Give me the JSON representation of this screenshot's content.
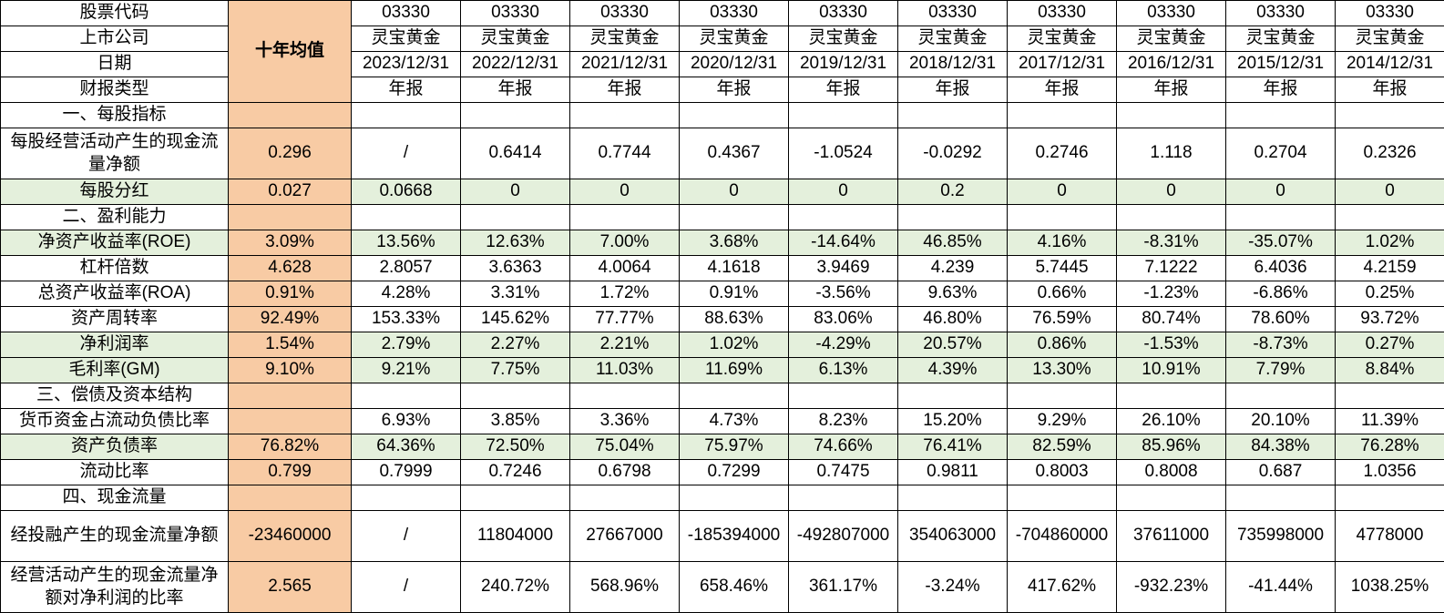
{
  "colors": {
    "avg_column_bg": "#F8CBA4",
    "highlight_row_bg": "#E4F0DC",
    "border": "#000000",
    "text": "#000000",
    "background": "#FFFFFF"
  },
  "table": {
    "avg_header_label": "十年均值",
    "header_rows": [
      {
        "label": "股票代码",
        "values": [
          "03330",
          "03330",
          "03330",
          "03330",
          "03330",
          "03330",
          "03330",
          "03330",
          "03330",
          "03330"
        ]
      },
      {
        "label": "上市公司",
        "values": [
          "灵宝黄金",
          "灵宝黄金",
          "灵宝黄金",
          "灵宝黄金",
          "灵宝黄金",
          "灵宝黄金",
          "灵宝黄金",
          "灵宝黄金",
          "灵宝黄金",
          "灵宝黄金"
        ]
      },
      {
        "label": "日期",
        "values": [
          "2023/12/31",
          "2022/12/31",
          "2021/12/31",
          "2020/12/31",
          "2019/12/31",
          "2018/12/31",
          "2017/12/31",
          "2016/12/31",
          "2015/12/31",
          "2014/12/31"
        ]
      },
      {
        "label": "财报类型",
        "values": [
          "年报",
          "年报",
          "年报",
          "年报",
          "年报",
          "年报",
          "年报",
          "年报",
          "年报",
          "年报"
        ]
      }
    ],
    "rows": [
      {
        "type": "section",
        "label": "一、每股指标"
      },
      {
        "type": "data",
        "tall": true,
        "highlight": false,
        "label": "每股经营活动产生的现金流量净额",
        "avg": "0.296",
        "values": [
          "/",
          "0.6414",
          "0.7744",
          "0.4367",
          "-1.0524",
          "-0.0292",
          "0.2746",
          "1.118",
          "0.2704",
          "0.2326"
        ]
      },
      {
        "type": "data",
        "highlight": true,
        "label": "每股分红",
        "avg": "0.027",
        "values": [
          "0.0668",
          "0",
          "0",
          "0",
          "0",
          "0.2",
          "0",
          "0",
          "0",
          "0"
        ]
      },
      {
        "type": "section",
        "label": "二、盈利能力"
      },
      {
        "type": "data",
        "highlight": true,
        "label": "净资产收益率(ROE)",
        "avg": "3.09%",
        "values": [
          "13.56%",
          "12.63%",
          "7.00%",
          "3.68%",
          "-14.64%",
          "46.85%",
          "4.16%",
          "-8.31%",
          "-35.07%",
          "1.02%"
        ]
      },
      {
        "type": "data",
        "highlight": false,
        "label": "杠杆倍数",
        "avg": "4.628",
        "values": [
          "2.8057",
          "3.6363",
          "4.0064",
          "4.1618",
          "3.9469",
          "4.239",
          "5.7445",
          "7.1222",
          "6.4036",
          "4.2159"
        ]
      },
      {
        "type": "data",
        "highlight": false,
        "label": "总资产收益率(ROA)",
        "avg": "0.91%",
        "values": [
          "4.28%",
          "3.31%",
          "1.72%",
          "0.91%",
          "-3.56%",
          "9.63%",
          "0.66%",
          "-1.23%",
          "-6.86%",
          "0.25%"
        ]
      },
      {
        "type": "data",
        "highlight": false,
        "label": "资产周转率",
        "avg": "92.49%",
        "values": [
          "153.33%",
          "145.62%",
          "77.77%",
          "88.63%",
          "83.06%",
          "46.80%",
          "76.59%",
          "80.74%",
          "78.60%",
          "93.72%"
        ]
      },
      {
        "type": "data",
        "highlight": true,
        "label": "净利润率",
        "avg": "1.54%",
        "values": [
          "2.79%",
          "2.27%",
          "2.21%",
          "1.02%",
          "-4.29%",
          "20.57%",
          "0.86%",
          "-1.53%",
          "-8.73%",
          "0.27%"
        ]
      },
      {
        "type": "data",
        "highlight": true,
        "label": "毛利率(GM)",
        "avg": "9.10%",
        "values": [
          "9.21%",
          "7.75%",
          "11.03%",
          "11.69%",
          "6.13%",
          "4.39%",
          "13.30%",
          "10.91%",
          "7.79%",
          "8.84%"
        ]
      },
      {
        "type": "section",
        "label": "三、偿债及资本结构"
      },
      {
        "type": "data",
        "highlight": false,
        "label": "货币资金占流动负债比率",
        "avg": "",
        "values": [
          "6.93%",
          "3.85%",
          "3.36%",
          "4.73%",
          "8.23%",
          "15.20%",
          "9.29%",
          "26.10%",
          "20.10%",
          "11.39%"
        ]
      },
      {
        "type": "data",
        "highlight": true,
        "label": "资产负债率",
        "avg": "76.82%",
        "values": [
          "64.36%",
          "72.50%",
          "75.04%",
          "75.97%",
          "74.66%",
          "76.41%",
          "82.59%",
          "85.96%",
          "84.38%",
          "76.28%"
        ]
      },
      {
        "type": "data",
        "highlight": false,
        "label": "流动比率",
        "avg": "0.799",
        "values": [
          "0.7999",
          "0.7246",
          "0.6798",
          "0.7299",
          "0.7475",
          "0.9811",
          "0.8003",
          "0.8008",
          "0.687",
          "1.0356"
        ]
      },
      {
        "type": "section",
        "label": "四、现金流量"
      },
      {
        "type": "data",
        "tall": true,
        "highlight": false,
        "label": "经投融产生的现金流量净额",
        "avg": "-23460000",
        "values": [
          "/",
          "11804000",
          "27667000",
          "-185394000",
          "-492807000",
          "354063000",
          "-704860000",
          "37611000",
          "735998000",
          "4778000"
        ]
      },
      {
        "type": "data",
        "tall": true,
        "highlight": false,
        "label": "经营活动产生的现金流量净额对净利润的比率",
        "avg": "2.565",
        "values": [
          "/",
          "240.72%",
          "568.96%",
          "658.46%",
          "361.17%",
          "-3.24%",
          "417.62%",
          "-932.23%",
          "-41.44%",
          "1038.25%"
        ]
      }
    ]
  }
}
